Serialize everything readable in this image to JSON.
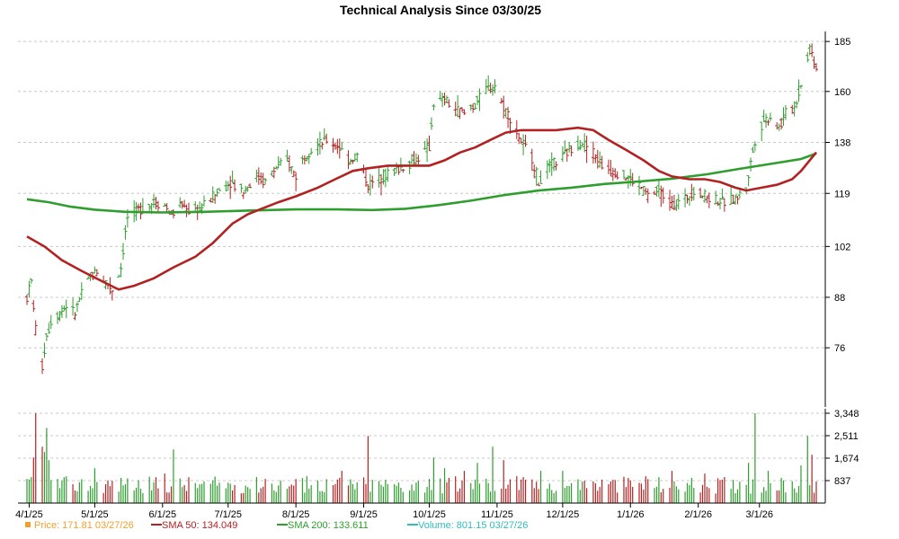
{
  "chart_data": {
    "type": "ohlc",
    "title": "Technical Analysis Since 03/30/25",
    "price_axis": {
      "ticks": [
        76,
        88,
        102,
        119,
        138,
        160,
        185
      ],
      "scale": "log",
      "range": [
        64,
        188
      ]
    },
    "volume_axis": {
      "ticks": [
        "837",
        "1,674",
        "2,511",
        "3,348"
      ],
      "tick_values": [
        837,
        1674,
        2511,
        3348
      ],
      "max": 3348
    },
    "x_axis": {
      "start": "2025-03-31",
      "end": "2026-03-27",
      "tick_dates": [
        "2025-04-01",
        "2025-05-01",
        "2025-06-01",
        "2025-07-01",
        "2025-08-01",
        "2025-09-01",
        "2025-10-01",
        "2025-11-01",
        "2025-12-01",
        "2026-01-01",
        "2026-02-01",
        "2026-03-01"
      ],
      "tick_labels": [
        "4/1/25",
        "5/1/25",
        "6/1/25",
        "7/1/25",
        "8/1/25",
        "9/1/25",
        "10/1/25",
        "11/1/25",
        "12/1/25",
        "1/1/26",
        "2/1/26",
        "3/1/26"
      ]
    },
    "grid": "horizontal dashed",
    "price_points": [
      [
        "2025-03-31",
        88
      ],
      [
        "2025-04-02",
        92
      ],
      [
        "2025-04-04",
        80
      ],
      [
        "2025-04-07",
        72
      ],
      [
        "2025-04-09",
        79
      ],
      [
        "2025-04-11",
        82
      ],
      [
        "2025-04-15",
        84
      ],
      [
        "2025-04-18",
        86
      ],
      [
        "2025-04-22",
        84
      ],
      [
        "2025-04-25",
        89
      ],
      [
        "2025-04-29",
        93
      ],
      [
        "2025-05-02",
        95
      ],
      [
        "2025-05-06",
        92
      ],
      [
        "2025-05-09",
        90
      ],
      [
        "2025-05-13",
        96
      ],
      [
        "2025-05-16",
        111
      ],
      [
        "2025-05-20",
        113
      ],
      [
        "2025-05-23",
        114
      ],
      [
        "2025-05-28",
        116
      ],
      [
        "2025-06-02",
        115
      ],
      [
        "2025-06-05",
        112
      ],
      [
        "2025-06-10",
        115
      ],
      [
        "2025-06-13",
        113
      ],
      [
        "2025-06-18",
        114
      ],
      [
        "2025-06-23",
        117
      ],
      [
        "2025-06-27",
        120
      ],
      [
        "2025-07-02",
        123
      ],
      [
        "2025-07-08",
        120
      ],
      [
        "2025-07-14",
        125
      ],
      [
        "2025-07-18",
        123
      ],
      [
        "2025-07-23",
        128
      ],
      [
        "2025-07-28",
        131
      ],
      [
        "2025-08-01",
        125
      ],
      [
        "2025-08-05",
        133
      ],
      [
        "2025-08-11",
        137
      ],
      [
        "2025-08-15",
        139
      ],
      [
        "2025-08-20",
        137
      ],
      [
        "2025-08-25",
        131
      ],
      [
        "2025-08-29",
        133
      ],
      [
        "2025-09-03",
        122
      ],
      [
        "2025-09-08",
        124
      ],
      [
        "2025-09-12",
        126
      ],
      [
        "2025-09-17",
        128
      ],
      [
        "2025-09-22",
        130
      ],
      [
        "2025-09-26",
        132
      ],
      [
        "2025-10-01",
        136
      ],
      [
        "2025-10-03",
        155
      ],
      [
        "2025-10-08",
        156
      ],
      [
        "2025-10-13",
        152
      ],
      [
        "2025-10-17",
        150
      ],
      [
        "2025-10-22",
        154
      ],
      [
        "2025-10-27",
        161
      ],
      [
        "2025-10-31",
        163
      ],
      [
        "2025-11-03",
        155
      ],
      [
        "2025-11-07",
        148
      ],
      [
        "2025-11-11",
        140
      ],
      [
        "2025-11-17",
        132
      ],
      [
        "2025-11-20",
        123
      ],
      [
        "2025-11-25",
        129
      ],
      [
        "2025-12-01",
        132
      ],
      [
        "2025-12-05",
        136
      ],
      [
        "2025-12-10",
        138
      ],
      [
        "2025-12-15",
        134
      ],
      [
        "2025-12-19",
        129
      ],
      [
        "2025-12-24",
        127
      ],
      [
        "2025-12-30",
        125
      ],
      [
        "2026-01-05",
        122
      ],
      [
        "2026-01-09",
        118
      ],
      [
        "2026-01-14",
        120
      ],
      [
        "2026-01-20",
        115
      ],
      [
        "2026-01-26",
        117
      ],
      [
        "2026-01-30",
        120
      ],
      [
        "2026-02-04",
        118
      ],
      [
        "2026-02-09",
        117
      ],
      [
        "2026-02-13",
        116
      ],
      [
        "2026-02-18",
        117
      ],
      [
        "2026-02-23",
        121
      ],
      [
        "2026-02-27",
        139
      ],
      [
        "2026-03-03",
        147
      ],
      [
        "2026-03-06",
        149
      ],
      [
        "2026-03-10",
        144
      ],
      [
        "2026-03-13",
        150
      ],
      [
        "2026-03-17",
        153
      ],
      [
        "2026-03-20",
        163
      ],
      [
        "2026-03-24",
        182
      ],
      [
        "2026-03-27",
        171.81
      ]
    ],
    "sma50_points": [
      [
        "2025-03-31",
        105
      ],
      [
        "2025-04-08",
        102
      ],
      [
        "2025-04-16",
        98
      ],
      [
        "2025-04-25",
        95
      ],
      [
        "2025-05-05",
        92
      ],
      [
        "2025-05-12",
        90
      ],
      [
        "2025-05-19",
        91
      ],
      [
        "2025-05-28",
        93
      ],
      [
        "2025-06-06",
        96
      ],
      [
        "2025-06-16",
        99
      ],
      [
        "2025-06-24",
        103
      ],
      [
        "2025-07-03",
        109
      ],
      [
        "2025-07-10",
        112
      ],
      [
        "2025-07-17",
        114
      ],
      [
        "2025-07-24",
        116
      ],
      [
        "2025-08-01",
        118
      ],
      [
        "2025-08-11",
        121
      ],
      [
        "2025-08-19",
        124
      ],
      [
        "2025-08-27",
        127
      ],
      [
        "2025-09-03",
        128
      ],
      [
        "2025-09-12",
        129
      ],
      [
        "2025-09-22",
        129
      ],
      [
        "2025-10-01",
        129
      ],
      [
        "2025-10-08",
        131
      ],
      [
        "2025-10-15",
        134
      ],
      [
        "2025-10-22",
        136
      ],
      [
        "2025-10-29",
        139
      ],
      [
        "2025-11-05",
        142
      ],
      [
        "2025-11-12",
        143
      ],
      [
        "2025-11-19",
        143
      ],
      [
        "2025-11-28",
        143
      ],
      [
        "2025-12-08",
        144
      ],
      [
        "2025-12-15",
        143
      ],
      [
        "2025-12-22",
        139
      ],
      [
        "2025-12-30",
        135
      ],
      [
        "2026-01-07",
        131
      ],
      [
        "2026-01-14",
        127
      ],
      [
        "2026-01-20",
        125
      ],
      [
        "2026-01-28",
        124
      ],
      [
        "2026-02-04",
        124
      ],
      [
        "2026-02-11",
        123
      ],
      [
        "2026-02-18",
        121
      ],
      [
        "2026-02-23",
        120
      ],
      [
        "2026-03-02",
        121
      ],
      [
        "2026-03-09",
        122
      ],
      [
        "2026-03-16",
        124
      ],
      [
        "2026-03-20",
        127
      ],
      [
        "2026-03-27",
        134.05
      ]
    ],
    "sma200_points": [
      [
        "2025-03-31",
        117
      ],
      [
        "2025-04-10",
        116
      ],
      [
        "2025-04-20",
        114.5
      ],
      [
        "2025-05-01",
        113.5
      ],
      [
        "2025-05-15",
        112.8
      ],
      [
        "2025-06-01",
        112.6
      ],
      [
        "2025-06-20",
        112.8
      ],
      [
        "2025-07-10",
        113.2
      ],
      [
        "2025-08-01",
        113.6
      ],
      [
        "2025-08-20",
        113.6
      ],
      [
        "2025-09-05",
        113.4
      ],
      [
        "2025-09-20",
        113.8
      ],
      [
        "2025-10-05",
        115
      ],
      [
        "2025-10-20",
        116.5
      ],
      [
        "2025-11-05",
        118.5
      ],
      [
        "2025-11-20",
        120
      ],
      [
        "2025-12-05",
        121
      ],
      [
        "2025-12-20",
        122.3
      ],
      [
        "2026-01-05",
        123.2
      ],
      [
        "2026-01-20",
        124.2
      ],
      [
        "2026-02-05",
        125.8
      ],
      [
        "2026-02-20",
        127.8
      ],
      [
        "2026-03-05",
        129.5
      ],
      [
        "2026-03-20",
        131.5
      ],
      [
        "2026-03-27",
        133.61
      ]
    ],
    "volume_points": [
      [
        "2025-03-31",
        900
      ],
      [
        "2025-04-03",
        1700
      ],
      [
        "2025-04-04",
        3350
      ],
      [
        "2025-04-07",
        2100
      ],
      [
        "2025-04-08",
        1900
      ],
      [
        "2025-04-09",
        2800
      ],
      [
        "2025-04-10",
        1600
      ],
      [
        "2025-04-14",
        900
      ],
      [
        "2025-04-21",
        700
      ],
      [
        "2025-05-01",
        1300
      ],
      [
        "2025-05-15",
        700
      ],
      [
        "2025-06-02",
        1100
      ],
      [
        "2025-06-06",
        2000
      ],
      [
        "2025-06-20",
        800
      ],
      [
        "2025-07-18",
        900
      ],
      [
        "2025-08-06",
        1000
      ],
      [
        "2025-08-22",
        1200
      ],
      [
        "2025-09-03",
        2500
      ],
      [
        "2025-09-15",
        700
      ],
      [
        "2025-10-01",
        900
      ],
      [
        "2025-10-03",
        1700
      ],
      [
        "2025-10-08",
        1300
      ],
      [
        "2025-10-13",
        1000
      ],
      [
        "2025-10-17",
        1200
      ],
      [
        "2025-10-23",
        1500
      ],
      [
        "2025-10-30",
        2100
      ],
      [
        "2025-11-04",
        1600
      ],
      [
        "2025-11-10",
        1000
      ],
      [
        "2025-11-21",
        1200
      ],
      [
        "2025-12-01",
        1200
      ],
      [
        "2025-12-10",
        800
      ],
      [
        "2025-12-22",
        700
      ],
      [
        "2026-01-08",
        1000
      ],
      [
        "2026-01-20",
        1200
      ],
      [
        "2026-02-04",
        1100
      ],
      [
        "2026-02-20",
        800
      ],
      [
        "2026-02-24",
        1500
      ],
      [
        "2026-02-27",
        3348
      ],
      [
        "2026-03-05",
        1200
      ],
      [
        "2026-03-20",
        1400
      ],
      [
        "2026-03-23",
        2500
      ],
      [
        "2026-03-25",
        1800
      ],
      [
        "2026-03-27",
        801.15
      ]
    ],
    "legend": [
      {
        "marker": "square",
        "color": "#f0a030",
        "label": "Price: 171.81 03/27/26"
      },
      {
        "marker": "line",
        "color": "#b22222",
        "label": "SMA 50: 134.049"
      },
      {
        "marker": "line",
        "color": "#2e9e2e",
        "label": "SMA 200: 133.611"
      },
      {
        "marker": "line",
        "color": "#33bbbb",
        "label": "Volume: 801.15 03/27/26"
      }
    ],
    "colors": {
      "up": "#2e9e2e",
      "down": "#b22222",
      "sma50": "#b22222",
      "sma200": "#2e9e2e",
      "volume_up": "#2e9e2e",
      "volume_down": "#b22222",
      "axis": "#000000"
    },
    "legend_placement": "bottom"
  }
}
